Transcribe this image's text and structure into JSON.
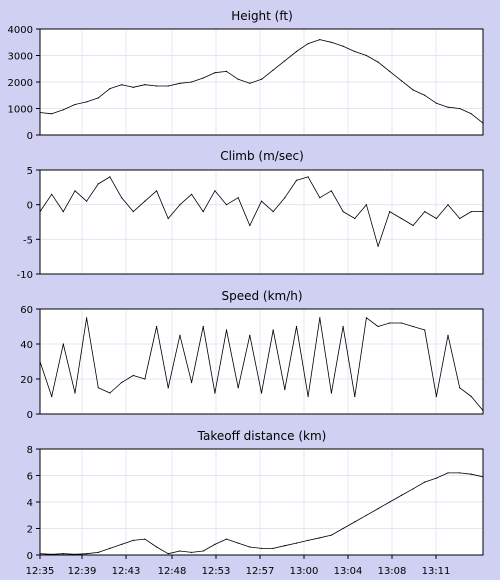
{
  "colors": {
    "background": "#cfd0f2",
    "plot": "#ffffff",
    "grid": "#e4e4f4",
    "line": "#000000"
  },
  "chart_data": [
    {
      "type": "line",
      "title": "Height (ft)",
      "ylim": [
        0,
        4000
      ],
      "yticks": [
        0,
        1000,
        2000,
        3000,
        4000
      ],
      "grid": true,
      "x": [
        "12:35",
        "12:36",
        "12:37",
        "12:38",
        "12:39",
        "12:40",
        "12:41",
        "12:42",
        "12:43",
        "12:44",
        "12:45",
        "12:46",
        "12:47",
        "12:48",
        "12:49",
        "12:50",
        "12:51",
        "12:52",
        "12:53",
        "12:54",
        "12:55",
        "12:56",
        "12:57",
        "12:58",
        "12:59",
        "13:00",
        "13:01",
        "13:02",
        "13:03",
        "13:04",
        "13:05",
        "13:06",
        "13:07",
        "13:08",
        "13:09",
        "13:10",
        "13:11",
        "13:12",
        "13:13"
      ],
      "series": [
        {
          "values": [
            850,
            800,
            950,
            1150,
            1250,
            1400,
            1750,
            1900,
            1800,
            1900,
            1850,
            1850,
            1950,
            2000,
            2150,
            2350,
            2400,
            2100,
            1950,
            2100,
            2450,
            2800,
            3150,
            3450,
            3600,
            3500,
            3350,
            3150,
            3000,
            2750,
            2400,
            2050,
            1700,
            1500,
            1200,
            1050,
            1000,
            800,
            450
          ]
        }
      ]
    },
    {
      "type": "line",
      "title": "Climb (m/sec)",
      "ylim": [
        -10,
        5
      ],
      "yticks": [
        -10,
        -5,
        0,
        5
      ],
      "grid": true,
      "x": [
        "12:35",
        "12:36",
        "12:37",
        "12:38",
        "12:39",
        "12:40",
        "12:41",
        "12:42",
        "12:43",
        "12:44",
        "12:45",
        "12:46",
        "12:47",
        "12:48",
        "12:49",
        "12:50",
        "12:51",
        "12:52",
        "12:53",
        "12:54",
        "12:55",
        "12:56",
        "12:57",
        "12:58",
        "12:59",
        "13:00",
        "13:01",
        "13:02",
        "13:03",
        "13:04",
        "13:05",
        "13:06",
        "13:07",
        "13:08",
        "13:09",
        "13:10",
        "13:11",
        "13:12",
        "13:13"
      ],
      "series": [
        {
          "values": [
            -1,
            1.5,
            -1,
            2,
            0.5,
            3,
            4,
            1,
            -1,
            0.5,
            2,
            -2,
            0,
            1.5,
            -1,
            2,
            0,
            1,
            -3,
            0.5,
            -1,
            1,
            3.5,
            4,
            1,
            2,
            -1,
            -2,
            0,
            -6,
            -1,
            -2,
            -3,
            -1,
            -2,
            0,
            -2,
            -1,
            -1
          ]
        }
      ]
    },
    {
      "type": "line",
      "title": "Speed (km/h)",
      "ylim": [
        0,
        60
      ],
      "yticks": [
        0,
        20,
        40,
        60
      ],
      "grid": true,
      "x": [
        "12:35",
        "12:36",
        "12:37",
        "12:38",
        "12:39",
        "12:40",
        "12:41",
        "12:42",
        "12:43",
        "12:44",
        "12:45",
        "12:46",
        "12:47",
        "12:48",
        "12:49",
        "12:50",
        "12:51",
        "12:52",
        "12:53",
        "12:54",
        "12:55",
        "12:56",
        "12:57",
        "12:58",
        "12:59",
        "13:00",
        "13:01",
        "13:02",
        "13:03",
        "13:04",
        "13:05",
        "13:06",
        "13:07",
        "13:08",
        "13:09",
        "13:10",
        "13:11",
        "13:12",
        "13:13"
      ],
      "series": [
        {
          "values": [
            30,
            10,
            40,
            12,
            55,
            15,
            12,
            18,
            22,
            20,
            50,
            15,
            45,
            18,
            50,
            12,
            48,
            15,
            45,
            12,
            48,
            14,
            50,
            10,
            55,
            12,
            50,
            10,
            55,
            50,
            52,
            52,
            50,
            48,
            10,
            45,
            15,
            10,
            2
          ]
        }
      ]
    },
    {
      "type": "line",
      "title": "Takeoff distance (km)",
      "ylim": [
        0,
        8
      ],
      "yticks": [
        0,
        2,
        4,
        6,
        8
      ],
      "xlabels": [
        "12:35",
        "12:39",
        "12:43",
        "12:48",
        "12:53",
        "12:57",
        "13:00",
        "13:04",
        "13:08",
        "13:11"
      ],
      "grid": true,
      "x": [
        "12:35",
        "12:36",
        "12:37",
        "12:38",
        "12:39",
        "12:40",
        "12:41",
        "12:42",
        "12:43",
        "12:44",
        "12:45",
        "12:46",
        "12:47",
        "12:48",
        "12:49",
        "12:50",
        "12:51",
        "12:52",
        "12:53",
        "12:54",
        "12:55",
        "12:56",
        "12:57",
        "12:58",
        "12:59",
        "13:00",
        "13:01",
        "13:02",
        "13:03",
        "13:04",
        "13:05",
        "13:06",
        "13:07",
        "13:08",
        "13:09",
        "13:10",
        "13:11",
        "13:12",
        "13:13"
      ],
      "series": [
        {
          "values": [
            0.1,
            0.05,
            0.1,
            0.05,
            0.1,
            0.2,
            0.5,
            0.8,
            1.1,
            1.2,
            0.6,
            0.1,
            0.3,
            0.2,
            0.3,
            0.8,
            1.2,
            0.9,
            0.6,
            0.5,
            0.5,
            0.7,
            0.9,
            1.1,
            1.3,
            1.5,
            2.0,
            2.5,
            3.0,
            3.5,
            4.0,
            4.5,
            5.0,
            5.5,
            5.8,
            6.2,
            6.2,
            6.1,
            5.9
          ]
        }
      ]
    }
  ]
}
